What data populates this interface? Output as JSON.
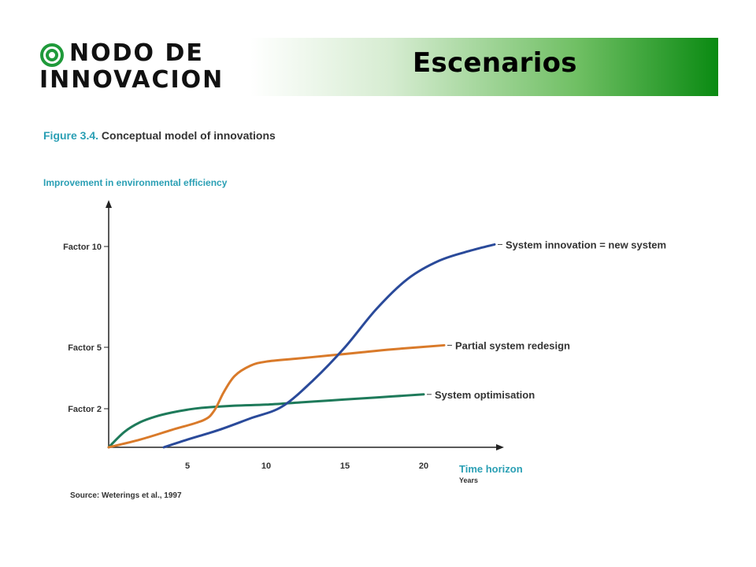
{
  "header": {
    "logo_line1": "NODO DE",
    "logo_line2": "INNOVACION",
    "title": "Escenarios",
    "colors": {
      "accent": "#0a8a12",
      "logo_mark": "#1f9a3a"
    }
  },
  "figure": {
    "number": "Figure 3.4.",
    "caption": "Conceptual model of innovations",
    "source": "Source: Weterings et al., 1997"
  },
  "chart_data": {
    "type": "line",
    "ylabel": "Improvement in environmental efficiency",
    "xlabel": "Time horizon",
    "xlabel_sub": "Years",
    "x_ticks": [
      5,
      10,
      15,
      20
    ],
    "x_tick_labels": [
      "5",
      "10",
      "15",
      "20"
    ],
    "xlim": [
      0,
      22
    ],
    "y_ticks": [
      {
        "label": "Factor 2",
        "value": 2
      },
      {
        "label": "Factor 5",
        "value": 5
      },
      {
        "label": "Factor 10",
        "value": 10
      }
    ],
    "ylim": [
      0,
      12
    ],
    "grid": false,
    "series": [
      {
        "name": "System optimisation",
        "color": "#1e7a5a",
        "points": [
          [
            0,
            0
          ],
          [
            1,
            0.8
          ],
          [
            2,
            1.3
          ],
          [
            3,
            1.6
          ],
          [
            4,
            1.8
          ],
          [
            5,
            1.95
          ],
          [
            6,
            2.05
          ],
          [
            8,
            2.15
          ],
          [
            10,
            2.2
          ],
          [
            12,
            2.3
          ],
          [
            14,
            2.4
          ],
          [
            16,
            2.5
          ],
          [
            18,
            2.6
          ],
          [
            20,
            2.7
          ]
        ]
      },
      {
        "name": "Partial system redesign",
        "color": "#d97a2a",
        "points": [
          [
            0,
            0
          ],
          [
            2,
            0.4
          ],
          [
            4,
            0.9
          ],
          [
            6,
            1.4
          ],
          [
            6.7,
            1.9
          ],
          [
            7.3,
            2.8
          ],
          [
            8,
            3.6
          ],
          [
            9,
            4.1
          ],
          [
            10,
            4.3
          ],
          [
            12,
            4.45
          ],
          [
            14,
            4.6
          ],
          [
            16,
            4.75
          ],
          [
            18,
            4.9
          ],
          [
            21.3,
            5.1
          ]
        ]
      },
      {
        "name": "System innovation = new system",
        "color": "#2a4a9a",
        "points": [
          [
            3.5,
            0
          ],
          [
            5,
            0.4
          ],
          [
            7,
            0.9
          ],
          [
            9,
            1.5
          ],
          [
            11,
            2.1
          ],
          [
            13,
            3.4
          ],
          [
            15,
            5.0
          ],
          [
            17,
            6.9
          ],
          [
            19,
            8.4
          ],
          [
            21,
            9.3
          ],
          [
            23,
            9.8
          ],
          [
            24.5,
            10.1
          ]
        ]
      }
    ]
  }
}
